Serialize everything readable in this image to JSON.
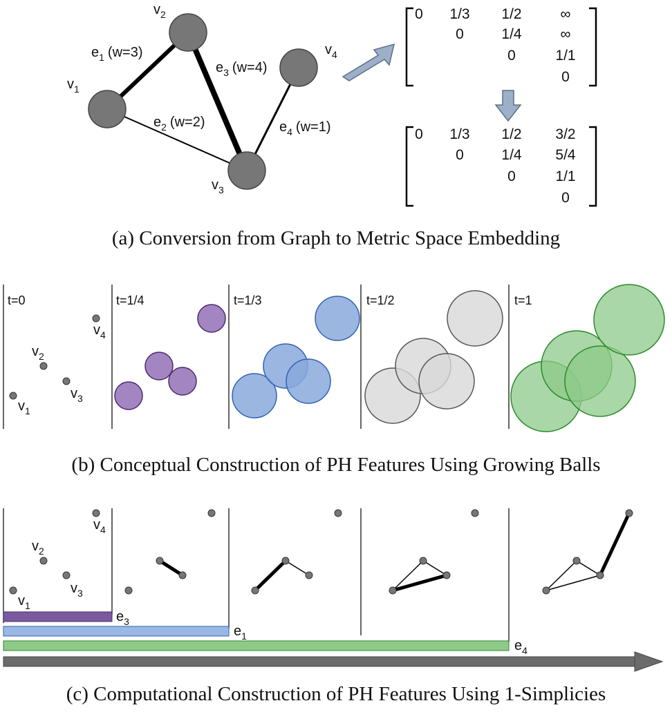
{
  "panel_a": {
    "caption": "(a)  Conversion from Graph to Metric Space Embedding",
    "vertex_labels": {
      "v1": "v",
      "v1_sub": "1",
      "v2": "v",
      "v2_sub": "2",
      "v3": "v",
      "v3_sub": "3",
      "v4": "v",
      "v4_sub": "4"
    },
    "edges": [
      {
        "id": "e1",
        "base": "e",
        "sub": "1",
        "weight": "(w=3)"
      },
      {
        "id": "e2",
        "base": "e",
        "sub": "2",
        "weight": "(w=2)"
      },
      {
        "id": "e3",
        "base": "e",
        "sub": "3",
        "weight": "(w=4)"
      },
      {
        "id": "e4",
        "base": "e",
        "sub": "4",
        "weight": "(w=1)"
      }
    ],
    "matrix_top": [
      [
        "0",
        "1/3",
        "1/2",
        "∞"
      ],
      [
        "",
        "0",
        "1/4",
        "∞"
      ],
      [
        "",
        "",
        "0",
        "1/1"
      ],
      [
        "",
        "",
        "",
        "0"
      ]
    ],
    "matrix_bottom": [
      [
        "0",
        "1/3",
        "1/2",
        "3/2"
      ],
      [
        "",
        "0",
        "1/4",
        "5/4"
      ],
      [
        "",
        "",
        "0",
        "1/1"
      ],
      [
        "",
        "",
        "",
        "0"
      ]
    ]
  },
  "panel_b": {
    "caption": "(b)  Conceptual Construction of PH Features Using Growing Balls",
    "steps": [
      "t=0",
      "t=1/4",
      "t=1/3",
      "t=1/2",
      "t=1"
    ],
    "colors": {
      "t14": "#a385c2",
      "t13": "#8aa9dc",
      "t12": "#d8d8d8",
      "t1": "#8ec98a"
    }
  },
  "panel_c": {
    "caption": "(c)  Computational Construction of PH Features Using 1-Simplicies",
    "bars": [
      {
        "base": "e",
        "sub": "3",
        "color": "#7a5a9e"
      },
      {
        "base": "e",
        "sub": "1",
        "color": "#9bb8e4"
      },
      {
        "base": "e",
        "sub": "4",
        "color": "#8ec98a"
      }
    ]
  }
}
